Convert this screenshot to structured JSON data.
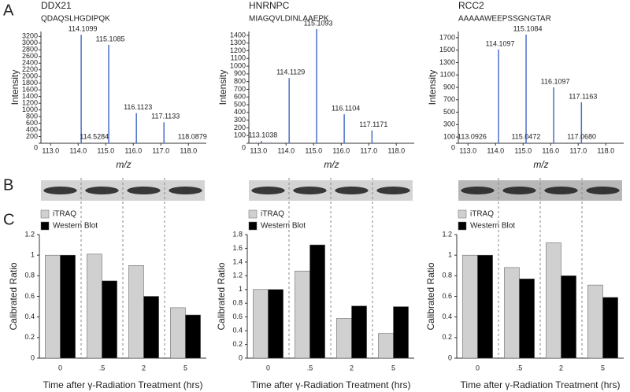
{
  "panel_labels": [
    "A",
    "B",
    "C"
  ],
  "chart_data": [
    {
      "type": "stem",
      "title": "DDX21",
      "subtitle": "QDAQSLHGDIPQK",
      "x_label": "m/z",
      "y_label": "Intensity",
      "color": "#4a6fc8",
      "x": [
        114.1099,
        115.1085,
        116.1123,
        117.1133,
        114.5284,
        118.0879
      ],
      "x_labels": [
        "114.1099",
        "115.1085",
        "116.1123",
        "117.1133",
        "114.5284",
        "118.0879"
      ],
      "values": [
        3250,
        2950,
        900,
        630,
        15,
        15
      ],
      "xlim": [
        112.65,
        118.65
      ],
      "xticks": [
        {
          "value": 113,
          "label": "113.0"
        },
        {
          "value": 114,
          "label": "114.0"
        },
        {
          "value": 115,
          "label": "115.0"
        },
        {
          "value": 116,
          "label": "116.0"
        },
        {
          "value": 117,
          "label": "117.0"
        },
        {
          "value": 118,
          "label": "118.0"
        }
      ],
      "ylim": [
        0,
        3350
      ],
      "yticks": [
        0,
        200,
        400,
        600,
        800,
        1000,
        1200,
        1400,
        1600,
        1800,
        2000,
        2200,
        2400,
        2600,
        2800,
        3000,
        3200
      ]
    },
    {
      "type": "stem",
      "title": "HNRNPC",
      "subtitle": "MIAGQVLDINLAAEPK",
      "x_label": "m/z",
      "y_label": "Intensity",
      "color": "#4a6fc8",
      "x": [
        115.1093,
        114.1129,
        116.1104,
        117.1171,
        113.1038
      ],
      "x_labels": [
        "115.1093",
        "114.1129",
        "116.1104",
        "117.1171",
        "113.1038"
      ],
      "values": [
        1480,
        846,
        376,
        167,
        30
      ],
      "xlim": [
        112.65,
        118.65
      ],
      "xticks": [
        {
          "value": 113,
          "label": "113.0"
        },
        {
          "value": 114,
          "label": "114.0"
        },
        {
          "value": 115,
          "label": "115.0"
        },
        {
          "value": 116,
          "label": "116.0"
        },
        {
          "value": 117,
          "label": "117.0"
        },
        {
          "value": 118,
          "label": "118.0"
        }
      ],
      "ylim": [
        0,
        1450
      ],
      "yticks": [
        0,
        100,
        200,
        300,
        400,
        500,
        600,
        700,
        800,
        900,
        1000,
        1100,
        1200,
        1300,
        1400
      ]
    },
    {
      "type": "stem",
      "title": "RCC2",
      "subtitle": "AAAAAWEEPSSGNGTAR",
      "x_label": "m/z",
      "y_label": "Intensity",
      "color": "#4a6fc8",
      "x": [
        115.1084,
        114.1097,
        116.1097,
        117.1163,
        113.0926,
        115.0472,
        117.068
      ],
      "x_labels": [
        "115.1084",
        "114.1097",
        "116.1097",
        "117.1163",
        "113.0926",
        "115.0472",
        "117.0680"
      ],
      "values": [
        1750,
        1510,
        900,
        660,
        10,
        10,
        10
      ],
      "xlim": [
        112.65,
        118.65
      ],
      "xticks": [
        {
          "value": 113,
          "label": "113.0"
        },
        {
          "value": 114,
          "label": "114.0"
        },
        {
          "value": 115,
          "label": "115.0"
        },
        {
          "value": 116,
          "label": "116.0"
        },
        {
          "value": 117,
          "label": "117.0"
        },
        {
          "value": 118,
          "label": "118.0"
        }
      ],
      "ylim": [
        0,
        1800
      ],
      "yticks": [
        0,
        100,
        300,
        500,
        700,
        900,
        1100,
        1300,
        1500,
        1700
      ]
    },
    {
      "type": "bar",
      "x_label": "Time after γ-Radiation Treatment (hrs)",
      "y_label": "Calibrated Ratio",
      "categories": [
        "0",
        ".5",
        "2",
        "5"
      ],
      "series": [
        {
          "name": "iTRAQ",
          "color": "#d0d0d0",
          "values": [
            1,
            1.01,
            0.9,
            0.49
          ]
        },
        {
          "name": "Western Blot",
          "color": "#000000",
          "values": [
            1,
            0.75,
            0.6,
            0.42
          ]
        }
      ],
      "ylim": [
        0,
        1.2
      ],
      "yticks": [
        0,
        0.2,
        0.4,
        0.6,
        0.8,
        1,
        1.2
      ]
    },
    {
      "type": "bar",
      "x_label": "Time after γ-Radiation Treatment (hrs)",
      "y_label": "Calibrated Ratio",
      "categories": [
        "0",
        ".5",
        "2",
        "5"
      ],
      "series": [
        {
          "name": "iTRAQ",
          "color": "#d0d0d0",
          "values": [
            1,
            1.27,
            0.58,
            0.36
          ]
        },
        {
          "name": "Western Blot",
          "color": "#000000",
          "values": [
            1,
            1.65,
            0.76,
            0.75
          ]
        }
      ],
      "ylim": [
        0,
        1.8
      ],
      "yticks": [
        0,
        0.2,
        0.4,
        0.6,
        0.8,
        1,
        1.2,
        1.4,
        1.6,
        1.8
      ]
    },
    {
      "type": "bar",
      "x_label": "Time after γ-Radiation Treatment (hrs)",
      "y_label": "Calibrated Ratio",
      "categories": [
        "0",
        ".5",
        "2",
        "5"
      ],
      "series": [
        {
          "name": "iTRAQ",
          "color": "#d0d0d0",
          "values": [
            1,
            0.88,
            1.12,
            0.71
          ]
        },
        {
          "name": "Western Blot",
          "color": "#000000",
          "values": [
            1,
            0.77,
            0.8,
            0.59
          ]
        }
      ],
      "ylim": [
        0,
        1.2
      ],
      "yticks": [
        0,
        0.2,
        0.4,
        0.6,
        0.8,
        1,
        1.2
      ]
    }
  ]
}
